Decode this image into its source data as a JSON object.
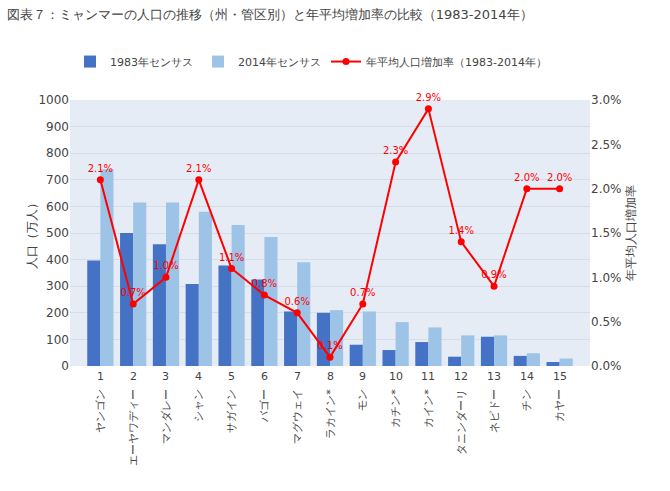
{
  "chart_data": {
    "type": "bar",
    "title": "図表７：ミャンマーの人口の推移（州・管区別）と年平均増加率の比較（1983-2014年）",
    "categories": [
      "ヤンゴン",
      "エーヤワディー",
      "マンダレー",
      "シャン",
      "サガイン",
      "バゴー",
      "マグウェイ",
      "ラカイン*",
      "モン",
      "カチン*",
      "カイン*",
      "タニンダーリ",
      "ネピドー",
      "チン",
      "カヤー"
    ],
    "numbers": [
      "1",
      "2",
      "3",
      "4",
      "5",
      "6",
      "7",
      "8",
      "9",
      "10",
      "11",
      "12",
      "13",
      "14",
      "15"
    ],
    "series": [
      {
        "name": "1983年センサス",
        "type": "bar",
        "color": "#4472C4",
        "values": [
          397,
          500,
          458,
          308,
          378,
          325,
          205,
          200,
          80,
          60,
          90,
          35,
          110,
          38,
          15
        ]
      },
      {
        "name": "2014年センサス",
        "type": "bar",
        "color": "#9DC3E6",
        "values": [
          740,
          615,
          615,
          580,
          530,
          485,
          390,
          210,
          205,
          165,
          145,
          115,
          115,
          48,
          28
        ]
      },
      {
        "name": "年平均人口増加率（1983-2014年）",
        "type": "line",
        "axis": "y2",
        "color": "#FF0000",
        "marker": "circle",
        "data_labels": true,
        "values": [
          2.1,
          0.7,
          1.0,
          2.1,
          1.1,
          0.8,
          0.6,
          0.1,
          0.7,
          2.3,
          2.9,
          1.4,
          0.9,
          2.0,
          2.0
        ],
        "value_labels": [
          "2.1%",
          "0.7%",
          "1.0%",
          "2.1%",
          "1.1%",
          "0.8%",
          "0.6%",
          "0.1%",
          "0.7%",
          "2.3%",
          "2.9%",
          "1.4%",
          "0.9%",
          "2.0%",
          "2.0%"
        ]
      }
    ],
    "ylabel": "人口（万人）",
    "y2label": "年平均人口増加率",
    "ylim": [
      0,
      1000
    ],
    "yticks": [
      0,
      100,
      200,
      300,
      400,
      500,
      600,
      700,
      800,
      900,
      1000
    ],
    "y2lim": [
      0.0,
      3.0
    ],
    "y2ticks": [
      {
        "value": 0.0,
        "label": "0.0%"
      },
      {
        "value": 0.5,
        "label": "0.5%"
      },
      {
        "value": 1.0,
        "label": "1.0%"
      },
      {
        "value": 1.5,
        "label": "1.5%"
      },
      {
        "value": 2.0,
        "label": "2.0%"
      },
      {
        "value": 2.5,
        "label": "2.5%"
      },
      {
        "value": 3.0,
        "label": "3.0%"
      }
    ],
    "grid": true,
    "legend": "top"
  }
}
